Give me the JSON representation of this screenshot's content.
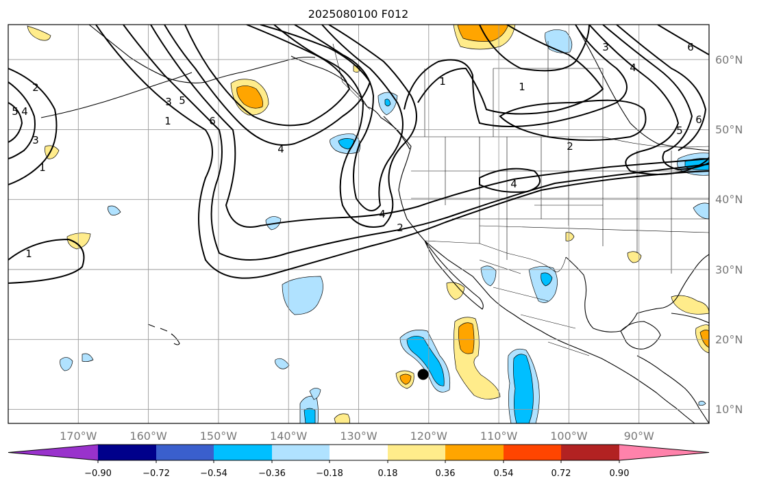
{
  "title": "2025080100 F012",
  "map": {
    "lon_range": [
      -180,
      -80
    ],
    "lat_range": [
      8,
      65
    ],
    "grid": true
  },
  "lon_labels": [
    {
      "lon": -170,
      "text": "170°W"
    },
    {
      "lon": -160,
      "text": "160°W"
    },
    {
      "lon": -150,
      "text": "150°W"
    },
    {
      "lon": -140,
      "text": "140°W"
    },
    {
      "lon": -130,
      "text": "130°W"
    },
    {
      "lon": -120,
      "text": "120°W"
    },
    {
      "lon": -110,
      "text": "110°W"
    },
    {
      "lon": -100,
      "text": "100°W"
    },
    {
      "lon": -90,
      "text": "90°W"
    }
  ],
  "lat_labels": [
    {
      "lat": 60,
      "text": "60°N"
    },
    {
      "lat": 50,
      "text": "50°N"
    },
    {
      "lat": 40,
      "text": "40°N"
    },
    {
      "lat": 30,
      "text": "30°N"
    },
    {
      "lat": 20,
      "text": "20°N"
    },
    {
      "lat": 10,
      "text": "10°N"
    }
  ],
  "contour_labels": [
    "1",
    "2",
    "3",
    "4",
    "5",
    "6"
  ],
  "colorbar": {
    "colors": [
      "#9932CC",
      "#00008B",
      "#3A5FCD",
      "#00BFFF",
      "#B0E2FF",
      "#FFFFFF",
      "#FFEC8B",
      "#FFA500",
      "#FF4500",
      "#B22222",
      "#FF82AB"
    ],
    "ticks": [
      "−0.90",
      "−0.72",
      "−0.54",
      "−0.36",
      "−0.18",
      "0.18",
      "0.36",
      "0.54",
      "0.72",
      "0.90"
    ]
  },
  "marker": {
    "lon": -120.8,
    "lat": 15.0,
    "color": "#000000"
  }
}
